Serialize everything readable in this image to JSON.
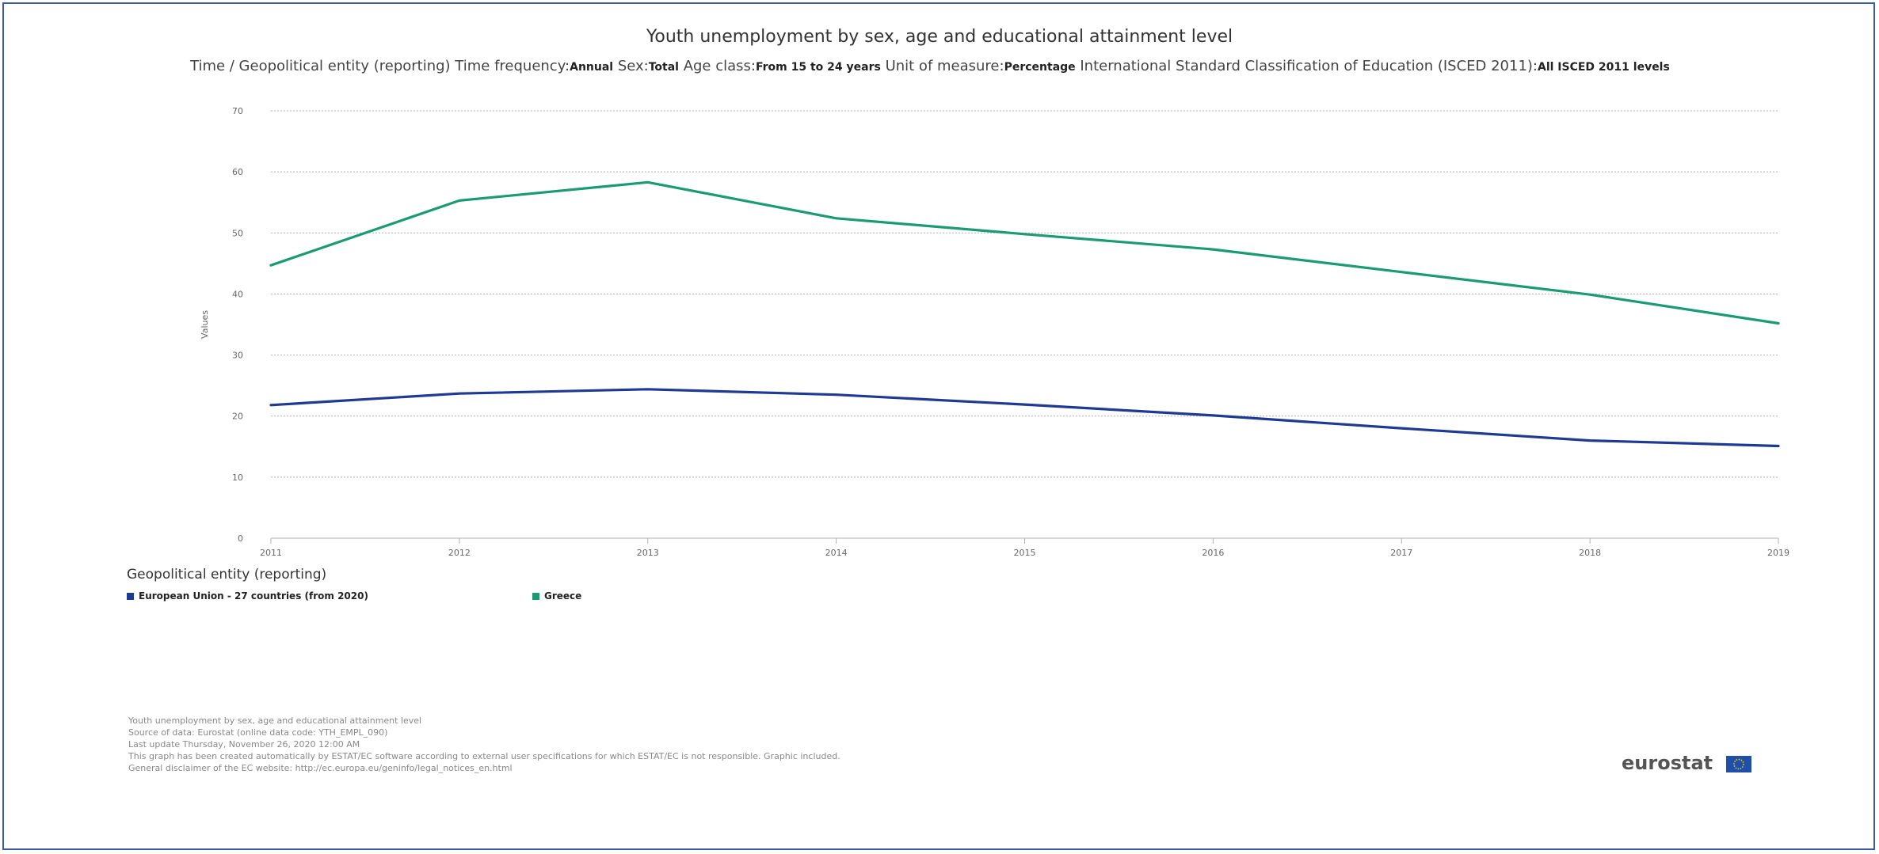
{
  "chart_data": {
    "type": "line",
    "title": "Youth unemployment by sex, age and educational attainment level",
    "subtitle": [
      {
        "label": "Time / Geopolitical entity (reporting)  Time frequency:",
        "value": "Annual"
      },
      {
        "label": "  Sex:",
        "value": "Total"
      },
      {
        "label": "  Age class:",
        "value": "From 15 to 24 years"
      },
      {
        "label": "  Unit of measure:",
        "value": "Percentage"
      },
      {
        "label": "  International Standard Classification of Education (ISCED 2011):",
        "value": "All ISCED 2011 levels"
      }
    ],
    "ylabel": "Values",
    "xlabel": "",
    "x": [
      "2011",
      "2012",
      "2013",
      "2014",
      "2015",
      "2016",
      "2017",
      "2018",
      "2019"
    ],
    "ylim": [
      0,
      70
    ],
    "yticks": [
      0,
      10,
      20,
      30,
      40,
      50,
      60,
      70
    ],
    "grid": true,
    "legend_title": "Geopolitical entity (reporting)",
    "legend_position": "bottom-left",
    "series": [
      {
        "name": "European Union - 27 countries (from 2020)",
        "color": "#1f3a93",
        "values": [
          21.8,
          23.7,
          24.4,
          23.5,
          21.9,
          20.1,
          18.0,
          16.0,
          15.1
        ]
      },
      {
        "name": "Greece",
        "color": "#1a9b73",
        "values": [
          44.7,
          55.3,
          58.3,
          52.4,
          49.8,
          47.3,
          43.6,
          39.9,
          35.2
        ]
      }
    ]
  },
  "footer": {
    "lines": [
      "Youth unemployment by sex, age and educational attainment level",
      "Source of data: Eurostat (online data code: YTH_EMPL_090)",
      "Last update Thursday, November 26, 2020 12:00 AM",
      "This graph has been created automatically by ESTAT/EC software according to external user specifications for which ESTAT/EC is not responsible. Graphic included.",
      "General disclaimer of the EC website: http://ec.europa.eu/geninfo/legal_notices_en.html"
    ]
  },
  "logo": {
    "text": "eurostat",
    "icon": "eu-flag-icon"
  }
}
